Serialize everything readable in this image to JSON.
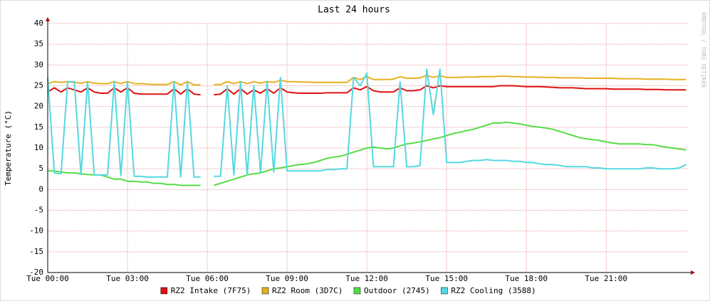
{
  "chart_data": {
    "type": "line",
    "title": "Last 24 hours",
    "y_label": "Temperature (°C)",
    "watermark": "RRDTOOL / TOBI OETIKER",
    "x": [
      0,
      0.25,
      0.5,
      0.75,
      1,
      1.25,
      1.5,
      1.75,
      2,
      2.25,
      2.5,
      2.75,
      3,
      3.25,
      3.5,
      3.75,
      4,
      4.25,
      4.5,
      4.75,
      5,
      5.25,
      5.5,
      5.75,
      6,
      6.25,
      6.5,
      6.75,
      7,
      7.25,
      7.5,
      7.75,
      8,
      8.25,
      8.5,
      8.75,
      9,
      9.25,
      9.5,
      9.75,
      10,
      10.25,
      10.5,
      10.75,
      11,
      11.25,
      11.5,
      11.75,
      12,
      12.25,
      12.5,
      12.75,
      13,
      13.25,
      13.5,
      13.75,
      14,
      14.25,
      14.5,
      14.75,
      15,
      15.25,
      15.5,
      15.75,
      16,
      16.25,
      16.5,
      16.75,
      17,
      17.25,
      17.5,
      17.75,
      18,
      18.25,
      18.5,
      18.75,
      19,
      19.25,
      19.5,
      19.75,
      20,
      20.25,
      20.5,
      20.75,
      21,
      21.25,
      21.5,
      21.75,
      22,
      22.25,
      22.5,
      22.75,
      23,
      23.25,
      23.5,
      23.75,
      24
    ],
    "xlim": [
      0,
      24.1
    ],
    "xticks": [
      {
        "value": 0,
        "label": "Tue 00:00"
      },
      {
        "value": 3,
        "label": "Tue 03:00"
      },
      {
        "value": 6,
        "label": "Tue 06:00"
      },
      {
        "value": 9,
        "label": "Tue 09:00"
      },
      {
        "value": 12,
        "label": "Tue 12:00"
      },
      {
        "value": 15,
        "label": "Tue 15:00"
      },
      {
        "value": 18,
        "label": "Tue 18:00"
      },
      {
        "value": 21,
        "label": "Tue 21:00"
      }
    ],
    "ylim": [
      -20,
      40
    ],
    "yticks": [
      -20,
      -15,
      -10,
      -5,
      0,
      5,
      10,
      15,
      20,
      25,
      30,
      35,
      40
    ],
    "grid": true,
    "series": [
      {
        "name": "RZ2 Intake (7F75)",
        "color": "#e01010",
        "values": [
          23.5,
          24.5,
          23.5,
          24.5,
          24,
          23.5,
          24.5,
          23.5,
          23.2,
          23.2,
          24.5,
          23.5,
          24.5,
          23.2,
          23,
          23,
          23,
          23,
          23,
          24.3,
          23,
          24.3,
          23,
          22.8,
          null,
          22.8,
          23,
          24.3,
          23,
          24.3,
          23,
          24,
          23.2,
          24.3,
          23.2,
          24.5,
          23.5,
          23.3,
          23.2,
          23.2,
          23.2,
          23.2,
          23.3,
          23.3,
          23.3,
          23.3,
          24.5,
          24,
          24.8,
          23.8,
          23.5,
          23.5,
          23.5,
          24.5,
          23.8,
          23.8,
          24,
          25,
          24.5,
          25,
          24.8,
          24.8,
          24.8,
          24.8,
          24.8,
          24.8,
          24.8,
          24.8,
          25,
          25,
          25,
          24.9,
          24.8,
          24.8,
          24.8,
          24.7,
          24.6,
          24.5,
          24.5,
          24.5,
          24.4,
          24.3,
          24.3,
          24.3,
          24.3,
          24.2,
          24.2,
          24.2,
          24.2,
          24.2,
          24.1,
          24.1,
          24.1,
          24,
          24,
          24,
          24
        ]
      },
      {
        "name": "RZ2 Room (3D7C)",
        "color": "#e8b020",
        "values": [
          25.5,
          26,
          25.8,
          26,
          25.8,
          25.6,
          26,
          25.6,
          25.5,
          25.5,
          26,
          25.5,
          26,
          25.5,
          25.5,
          25.4,
          25.3,
          25.3,
          25.3,
          26,
          25.2,
          26,
          25.2,
          25.2,
          null,
          25.3,
          25.3,
          26,
          25.5,
          26,
          25.5,
          26,
          25.6,
          26,
          25.8,
          26.3,
          26,
          26,
          25.9,
          25.9,
          25.8,
          25.8,
          25.8,
          25.8,
          25.8,
          25.8,
          27,
          26.5,
          27.2,
          26.5,
          26.5,
          26.5,
          26.6,
          27.2,
          26.8,
          26.8,
          26.9,
          27.5,
          27,
          27.4,
          27,
          27,
          27,
          27.1,
          27.1,
          27.2,
          27.2,
          27.2,
          27.3,
          27.3,
          27.2,
          27.2,
          27.1,
          27.1,
          27,
          27,
          27,
          26.9,
          26.9,
          26.9,
          26.9,
          26.8,
          26.8,
          26.8,
          26.8,
          26.8,
          26.7,
          26.7,
          26.7,
          26.7,
          26.6,
          26.6,
          26.6,
          26.6,
          26.5,
          26.5,
          26.5
        ]
      },
      {
        "name": "Outdoor (2745)",
        "color": "#55dd44",
        "values": [
          4.5,
          4.5,
          4.2,
          4.0,
          4.0,
          3.8,
          3.6,
          3.5,
          3.5,
          3.0,
          2.5,
          2.5,
          2.0,
          2.0,
          1.8,
          1.8,
          1.5,
          1.5,
          1.2,
          1.2,
          1.0,
          1.0,
          1.0,
          1.0,
          null,
          1.0,
          1.5,
          2.0,
          2.5,
          3.0,
          3.5,
          3.8,
          4.0,
          4.5,
          5.0,
          5.2,
          5.5,
          5.8,
          6.0,
          6.2,
          6.5,
          7.0,
          7.5,
          7.8,
          8.0,
          8.5,
          9.0,
          9.5,
          10.0,
          10.2,
          10.0,
          9.8,
          10.0,
          10.5,
          11.0,
          11.2,
          11.5,
          11.8,
          12.2,
          12.5,
          13.0,
          13.5,
          13.8,
          14.2,
          14.5,
          15.0,
          15.5,
          16.0,
          16.0,
          16.2,
          16.0,
          15.8,
          15.5,
          15.2,
          15.0,
          14.8,
          14.5,
          14.0,
          13.5,
          13.0,
          12.5,
          12.2,
          12.0,
          11.8,
          11.5,
          11.2,
          11.0,
          11.0,
          11.0,
          11.0,
          10.8,
          10.8,
          10.5,
          10.2,
          10.0,
          9.8,
          9.5
        ]
      },
      {
        "name": "RZ2 Cooling (3588)",
        "color": "#55d8e0",
        "values": [
          27,
          4.0,
          3.8,
          26,
          26,
          3.6,
          26,
          3.5,
          3.5,
          3.5,
          26,
          3.4,
          26,
          3.2,
          3.2,
          3.0,
          3.0,
          3.0,
          3.0,
          26,
          3.0,
          26,
          3.0,
          3.0,
          null,
          3.2,
          3.2,
          25,
          3.5,
          26,
          3.5,
          25,
          4.0,
          26,
          4.2,
          27,
          4.5,
          4.5,
          4.5,
          4.5,
          4.5,
          4.5,
          4.8,
          4.8,
          5.0,
          5.0,
          27,
          25,
          28,
          5.5,
          5.5,
          5.5,
          5.5,
          26,
          5.5,
          5.5,
          5.8,
          29,
          18,
          29,
          6.5,
          6.5,
          6.5,
          6.8,
          7.0,
          7.0,
          7.2,
          7.0,
          7.0,
          7.0,
          6.8,
          6.8,
          6.5,
          6.5,
          6.2,
          6.0,
          6.0,
          5.8,
          5.5,
          5.5,
          5.5,
          5.5,
          5.2,
          5.2,
          5.0,
          5.0,
          5.0,
          5.0,
          5.0,
          5.0,
          5.2,
          5.2,
          5.0,
          5.0,
          5.0,
          5.2,
          6.0
        ]
      }
    ]
  }
}
